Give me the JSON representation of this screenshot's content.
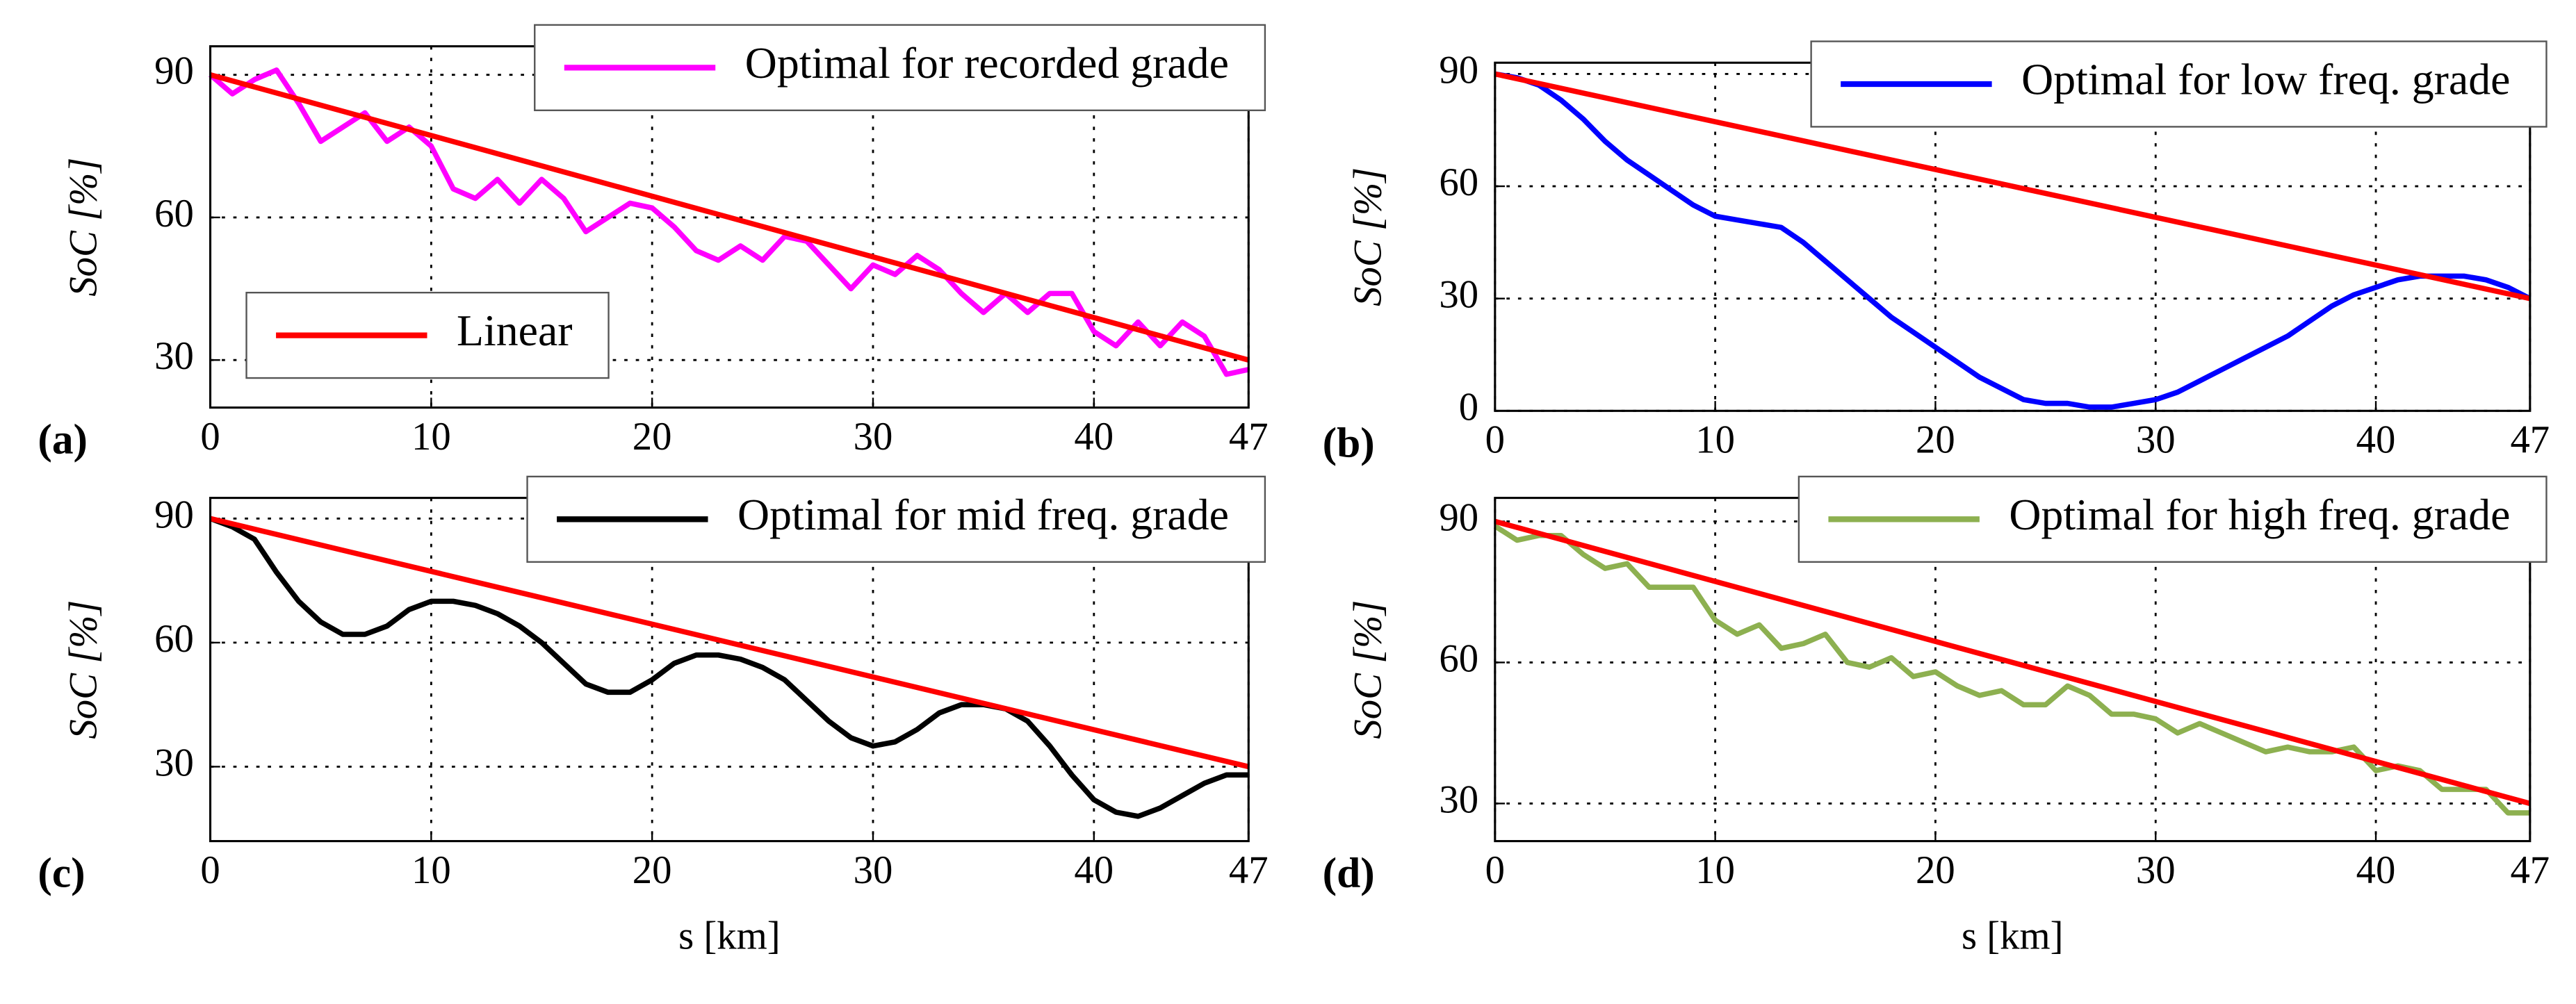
{
  "chart_data": [
    {
      "type": "line",
      "label": "(a)",
      "ylabel": "SoC [%]",
      "xlim": [
        0,
        47
      ],
      "ylim": [
        20,
        96
      ],
      "xticks": [
        0,
        10,
        20,
        30,
        40,
        47
      ],
      "yticks": [
        30,
        60,
        90
      ],
      "grid": true,
      "legend": "upper right",
      "series": [
        {
          "name": "Optimal for recorded grade",
          "color": "#ff00ff",
          "x": [
            0,
            1,
            2,
            3,
            4,
            5,
            6,
            7,
            8,
            9,
            10,
            11,
            12,
            13,
            14,
            15,
            16,
            17,
            18,
            19,
            20,
            21,
            22,
            23,
            24,
            25,
            26,
            27,
            28,
            29,
            30,
            31,
            32,
            33,
            34,
            35,
            36,
            37,
            38,
            39,
            40,
            41,
            42,
            43,
            44,
            45,
            46,
            47
          ],
          "values": [
            90,
            86,
            89,
            91,
            84,
            76,
            79,
            82,
            76,
            79,
            75,
            66,
            64,
            68,
            63,
            68,
            64,
            57,
            60,
            63,
            62,
            58,
            53,
            51,
            54,
            51,
            56,
            55,
            50,
            45,
            50,
            48,
            52,
            49,
            44,
            40,
            44,
            40,
            44,
            44,
            36,
            33,
            38,
            33,
            38,
            35,
            27,
            28
          ]
        },
        {
          "name": "Linear",
          "color": "#ff0000",
          "x": [
            0,
            47
          ],
          "values": [
            90,
            30
          ]
        }
      ]
    },
    {
      "type": "line",
      "label": "(b)",
      "ylabel": "SoC [%]",
      "xlim": [
        0,
        47
      ],
      "ylim": [
        0,
        93
      ],
      "xticks": [
        0,
        10,
        20,
        30,
        40,
        47
      ],
      "yticks": [
        0,
        30,
        60,
        90
      ],
      "grid": true,
      "legend": "upper right",
      "series": [
        {
          "name": "Optimal for low freq. grade",
          "color": "#0000ff",
          "x": [
            0,
            1,
            2,
            3,
            4,
            5,
            6,
            7,
            8,
            9,
            10,
            11,
            12,
            13,
            14,
            15,
            16,
            17,
            18,
            19,
            20,
            21,
            22,
            23,
            24,
            25,
            26,
            27,
            28,
            29,
            30,
            31,
            32,
            33,
            34,
            35,
            36,
            37,
            38,
            39,
            40,
            41,
            42,
            43,
            44,
            45,
            46,
            47
          ],
          "values": [
            90,
            89,
            87,
            83,
            78,
            72,
            67,
            63,
            59,
            55,
            52,
            51,
            50,
            49,
            45,
            40,
            35,
            30,
            25,
            21,
            17,
            13,
            9,
            6,
            3,
            2,
            2,
            1,
            1,
            2,
            3,
            5,
            8,
            11,
            14,
            17,
            20,
            24,
            28,
            31,
            33,
            35,
            36,
            36,
            36,
            35,
            33,
            30
          ]
        },
        {
          "color": "#ff0000",
          "x": [
            0,
            47
          ],
          "values": [
            90,
            30
          ]
        }
      ]
    },
    {
      "type": "line",
      "label": "(c)",
      "ylabel": "SoC [%]",
      "xlabel": "s [km]",
      "xlim": [
        0,
        47
      ],
      "ylim": [
        12,
        95
      ],
      "xticks": [
        0,
        10,
        20,
        30,
        40,
        47
      ],
      "yticks": [
        30,
        60,
        90
      ],
      "grid": true,
      "legend": "upper right",
      "series": [
        {
          "name": "Optimal for mid freq. grade",
          "color": "#000000",
          "x": [
            0,
            1,
            2,
            3,
            4,
            5,
            6,
            7,
            8,
            9,
            10,
            11,
            12,
            13,
            14,
            15,
            16,
            17,
            18,
            19,
            20,
            21,
            22,
            23,
            24,
            25,
            26,
            27,
            28,
            29,
            30,
            31,
            32,
            33,
            34,
            35,
            36,
            37,
            38,
            39,
            40,
            41,
            42,
            43,
            44,
            45,
            46,
            47
          ],
          "values": [
            90,
            88,
            85,
            77,
            70,
            65,
            62,
            62,
            64,
            68,
            70,
            70,
            69,
            67,
            64,
            60,
            55,
            50,
            48,
            48,
            51,
            55,
            57,
            57,
            56,
            54,
            51,
            46,
            41,
            37,
            35,
            36,
            39,
            43,
            45,
            45,
            44,
            41,
            35,
            28,
            22,
            19,
            18,
            20,
            23,
            26,
            28,
            28
          ]
        },
        {
          "color": "#ff0000",
          "x": [
            0,
            47
          ],
          "values": [
            90,
            30
          ]
        }
      ]
    },
    {
      "type": "line",
      "label": "(d)",
      "ylabel": "SoC [%]",
      "xlabel": "s [km]",
      "xlim": [
        0,
        47
      ],
      "ylim": [
        22,
        95
      ],
      "xticks": [
        0,
        10,
        20,
        30,
        40,
        47
      ],
      "yticks": [
        30,
        60,
        90
      ],
      "grid": true,
      "legend": "upper right",
      "series": [
        {
          "name": "Optimal for high freq. grade",
          "color": "#8db050",
          "x": [
            0,
            1,
            2,
            3,
            4,
            5,
            6,
            7,
            8,
            9,
            10,
            11,
            12,
            13,
            14,
            15,
            16,
            17,
            18,
            19,
            20,
            21,
            22,
            23,
            24,
            25,
            26,
            27,
            28,
            29,
            30,
            31,
            32,
            33,
            34,
            35,
            36,
            37,
            38,
            39,
            40,
            41,
            42,
            43,
            44,
            45,
            46,
            47
          ],
          "values": [
            89,
            86,
            87,
            87,
            83,
            80,
            81,
            76,
            76,
            76,
            69,
            66,
            68,
            63,
            64,
            66,
            60,
            59,
            61,
            57,
            58,
            55,
            53,
            54,
            51,
            51,
            55,
            53,
            49,
            49,
            48,
            45,
            47,
            45,
            43,
            41,
            42,
            41,
            41,
            42,
            37,
            38,
            37,
            33,
            33,
            33,
            28,
            28
          ]
        },
        {
          "color": "#ff0000",
          "x": [
            0,
            47
          ],
          "values": [
            90,
            30
          ]
        }
      ]
    }
  ]
}
